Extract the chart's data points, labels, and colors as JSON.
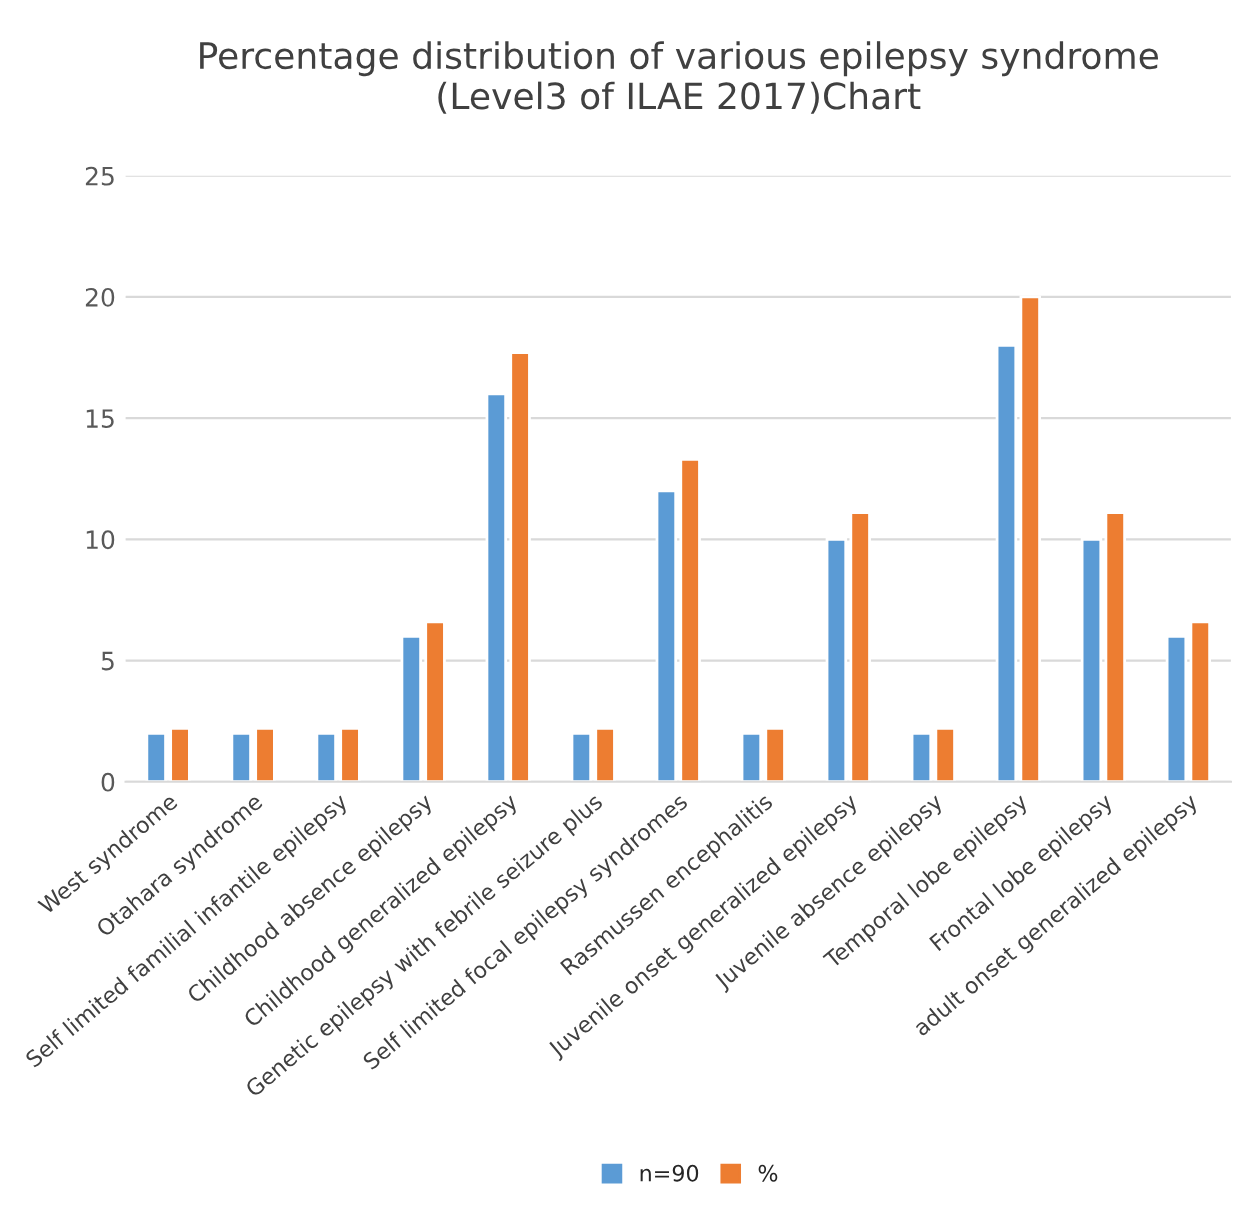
{
  "chart_data": {
    "type": "bar",
    "title": "Percentage distribution of various epilepsy syndrome\n(Level3 of ILAE 2017)Chart",
    "categories": [
      "West syndrome",
      "Otahara syndrome",
      "Self limited familial infantile epilepsy",
      "Childhood absence epilepsy",
      "Childhood generalized epilepsy",
      "Genetic epilepsy with febrile seizure plus",
      "Self limited focal epilepsy syndromes",
      "Rasmussen encephalitis",
      "Juvenile onset generalized epilepsy",
      "Juvenile absence epilepsy",
      "Temporal lobe epilepsy",
      "Frontal lobe epilepsy",
      "adult onset generalized epilepsy"
    ],
    "series": [
      {
        "name": "n=90",
        "color": "#5b9bd5",
        "values": [
          2,
          2,
          2,
          6,
          16,
          2,
          12,
          2,
          10,
          2,
          18,
          10,
          6
        ]
      },
      {
        "name": "%",
        "color": "#ed7d31",
        "values": [
          2.2,
          2.2,
          2.2,
          6.6,
          17.7,
          2.2,
          13.3,
          2.2,
          11.1,
          2.2,
          20,
          11.1,
          6.6
        ]
      }
    ],
    "ylim": [
      0,
      25
    ],
    "yticks": [
      0,
      5,
      10,
      15,
      20,
      25
    ],
    "grid": "y",
    "legend": "bottom"
  }
}
